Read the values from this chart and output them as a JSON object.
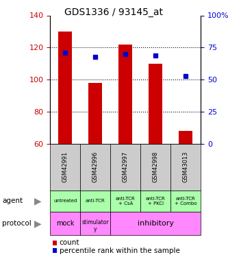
{
  "title": "GDS1336 / 93145_at",
  "samples": [
    "GSM42991",
    "GSM42996",
    "GSM42997",
    "GSM42998",
    "GSM43013"
  ],
  "count_values": [
    130,
    98,
    122,
    110,
    68
  ],
  "count_base": 60,
  "percentile_values": [
    71,
    68,
    70,
    69,
    53
  ],
  "left_ylim": [
    60,
    140
  ],
  "left_yticks": [
    60,
    80,
    100,
    120,
    140
  ],
  "right_ylim": [
    0,
    100
  ],
  "right_yticks": [
    0,
    25,
    50,
    75,
    100
  ],
  "left_tick_color": "#cc0000",
  "right_tick_color": "#0000cc",
  "bar_color": "#cc0000",
  "dot_color": "#0000cc",
  "agent_labels": [
    "untreated",
    "anti-TCR",
    "anti-TCR\n+ CsA",
    "anti-TCR\n+ PKCi",
    "anti-TCR\n+ Combo"
  ],
  "agent_bg": "#aaffaa",
  "sample_bg": "#cccccc",
  "proto_color": "#ff88ff",
  "legend_count_color": "#cc0000",
  "legend_pct_color": "#0000cc",
  "title_fontsize": 10
}
